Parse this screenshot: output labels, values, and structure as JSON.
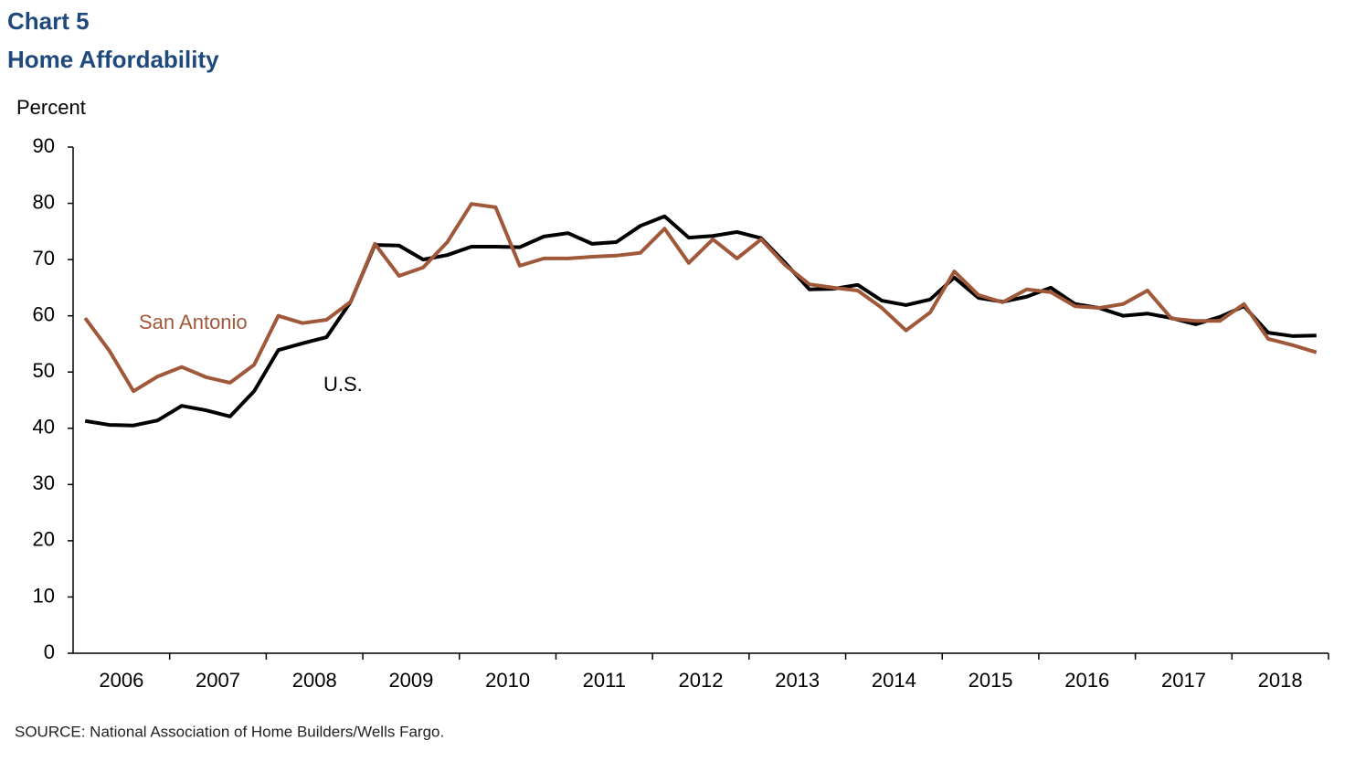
{
  "chart_data": {
    "type": "line",
    "title": "Chart 5",
    "subtitle": "Home Affordability",
    "y_label": "Percent",
    "source": "SOURCE: National Association of Home Builders/Wells Fargo.",
    "categories": [
      "2006",
      null,
      null,
      null,
      "2007",
      null,
      null,
      null,
      "2008",
      null,
      null,
      null,
      "2009",
      null,
      null,
      null,
      "2010",
      null,
      null,
      null,
      "2011",
      null,
      null,
      null,
      "2012",
      null,
      null,
      null,
      "2013",
      null,
      null,
      null,
      "2014",
      null,
      null,
      null,
      "2015",
      null,
      null,
      null,
      "2016",
      null,
      null,
      null,
      "2017",
      null,
      null,
      null,
      "2018",
      null,
      null,
      null
    ],
    "series": [
      {
        "name": "U.S.",
        "color": "#000000",
        "values": [
          41.3,
          40.6,
          40.5,
          41.4,
          44.0,
          43.2,
          42.1,
          46.6,
          53.9,
          55.1,
          56.2,
          62.5,
          72.6,
          72.5,
          70.0,
          70.8,
          72.3,
          72.3,
          72.2,
          74.1,
          74.7,
          72.8,
          73.1,
          76.0,
          77.7,
          73.9,
          74.2,
          74.9,
          73.8,
          69.4,
          64.7,
          64.8,
          65.5,
          62.7,
          61.9,
          62.9,
          66.8,
          63.2,
          62.5,
          63.4,
          65.0,
          62.1,
          61.4,
          60.0,
          60.4,
          59.6,
          58.5,
          59.8,
          61.7,
          57.0,
          56.4,
          56.5
        ]
      },
      {
        "name": "San Antonio",
        "color": "#a0583a",
        "values": [
          59.6,
          53.8,
          46.6,
          49.2,
          50.9,
          49.1,
          48.1,
          51.3,
          60.0,
          58.7,
          59.3,
          62.5,
          72.8,
          67.1,
          68.6,
          73.1,
          79.9,
          79.3,
          68.9,
          70.2,
          70.2,
          70.5,
          70.7,
          71.2,
          75.5,
          69.4,
          73.6,
          70.2,
          73.6,
          69.0,
          65.6,
          65.0,
          64.5,
          61.4,
          57.4,
          60.6,
          67.9,
          63.7,
          62.4,
          64.7,
          64.2,
          61.7,
          61.4,
          62.1,
          64.5,
          59.5,
          59.1,
          59.1,
          62.1,
          55.9,
          54.8,
          53.5
        ]
      }
    ],
    "ylim": [
      0,
      90
    ],
    "yticks": [
      0,
      10,
      20,
      30,
      40,
      50,
      60,
      70,
      80,
      90
    ],
    "grid": false
  }
}
